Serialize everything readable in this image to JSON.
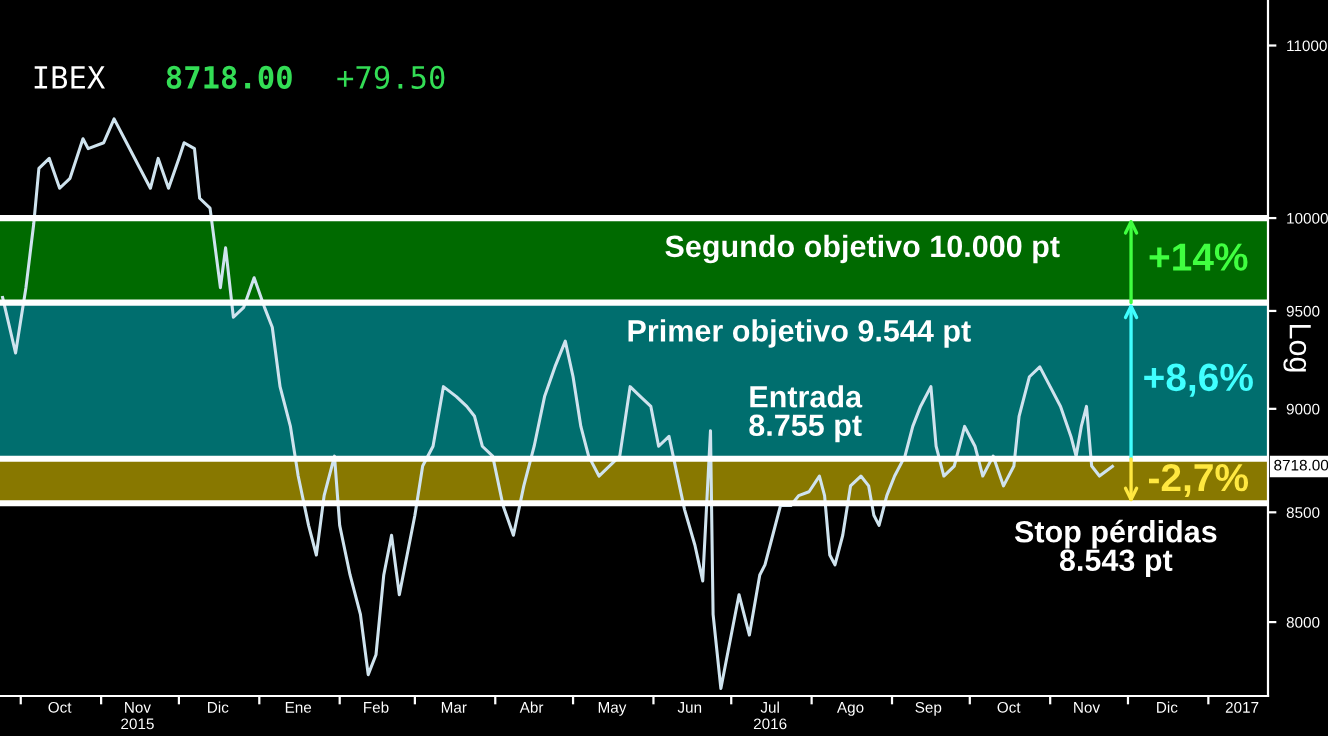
{
  "chart_data": {
    "type": "line",
    "title": "IBEX",
    "ylabel": "Log",
    "annotations": [
      "8718.00",
      "+79.50",
      {
        "text": "8718.00",
        "y": 8718
      }
    ],
    "x": [
      "2015-09-24",
      "2015-09-29",
      "2015-10-03",
      "2015-10-06",
      "2015-10-08",
      "2015-10-12",
      "2015-10-16",
      "2015-10-20",
      "2015-10-25",
      "2015-10-27",
      "2015-11-02",
      "2015-11-06",
      "2015-11-10",
      "2015-11-16",
      "2015-11-20",
      "2015-11-23",
      "2015-11-27",
      "2015-12-01",
      "2015-12-03",
      "2015-12-07",
      "2015-12-09",
      "2015-12-13",
      "2015-12-17",
      "2015-12-19",
      "2015-12-22",
      "2015-12-26",
      "2015-12-30",
      "2016-01-03",
      "2016-01-06",
      "2016-01-09",
      "2016-01-13",
      "2016-01-16",
      "2016-01-20",
      "2016-01-23",
      "2016-01-26",
      "2016-01-30",
      "2016-02-01",
      "2016-02-05",
      "2016-02-09",
      "2016-02-12",
      "2016-02-15",
      "2016-02-18",
      "2016-02-21",
      "2016-02-24",
      "2016-02-27",
      "2016-03-01",
      "2016-03-04",
      "2016-03-08",
      "2016-03-12",
      "2016-03-17",
      "2016-03-21",
      "2016-03-24",
      "2016-03-27",
      "2016-03-31",
      "2016-04-04",
      "2016-04-08",
      "2016-04-12",
      "2016-04-16",
      "2016-04-20",
      "2016-04-24",
      "2016-04-28",
      "2016-05-01",
      "2016-05-04",
      "2016-05-07",
      "2016-05-11",
      "2016-05-15",
      "2016-05-19",
      "2016-05-23",
      "2016-05-27",
      "2016-05-31",
      "2016-06-03",
      "2016-06-07",
      "2016-06-13",
      "2016-06-17",
      "2016-06-20",
      "2016-06-23",
      "2016-06-24",
      "2016-06-27",
      "2016-07-04",
      "2016-07-08",
      "2016-07-12",
      "2016-07-14",
      "2016-07-17",
      "2016-07-20",
      "2016-07-24",
      "2016-07-27",
      "2016-07-31",
      "2016-08-04",
      "2016-08-06",
      "2016-08-08",
      "2016-08-10",
      "2016-08-13",
      "2016-08-16",
      "2016-08-20",
      "2016-08-23",
      "2016-08-25",
      "2016-08-27",
      "2016-08-30",
      "2016-09-02",
      "2016-09-06",
      "2016-09-09",
      "2016-09-12",
      "2016-09-16",
      "2016-09-18",
      "2016-09-21",
      "2016-09-25",
      "2016-09-29",
      "2016-10-03",
      "2016-10-06",
      "2016-10-10",
      "2016-10-14",
      "2016-10-18",
      "2016-10-20",
      "2016-10-24",
      "2016-10-28",
      "2016-11-01",
      "2016-11-05",
      "2016-11-09",
      "2016-11-11",
      "2016-11-13",
      "2016-11-15",
      "2016-11-17",
      "2016-11-20",
      "2016-11-25"
    ],
    "series": [
      {
        "color": "#cfe3ee",
        "values": [
          9571,
          9282,
          9623,
          9967,
          10278,
          10335,
          10166,
          10222,
          10448,
          10391,
          10425,
          10563,
          10448,
          10278,
          10166,
          10335,
          10166,
          10335,
          10425,
          10391,
          10110,
          10055,
          9623,
          9837,
          9467,
          9519,
          9676,
          9519,
          9415,
          9111,
          8913,
          8672,
          8439,
          8302,
          8579,
          8768,
          8439,
          8211,
          8034,
          7771,
          7857,
          8211,
          8393,
          8122,
          8302,
          8486,
          8720,
          8816,
          9111,
          9061,
          9012,
          8963,
          8816,
          8768,
          8532,
          8393,
          8625,
          8816,
          9061,
          9211,
          9343,
          9161,
          8913,
          8768,
          8672,
          8720,
          8768,
          9111,
          9061,
          9012,
          8816,
          8864,
          8513,
          8347,
          8184,
          8892,
          8034,
          7712,
          8122,
          7943,
          8211,
          8257,
          8393,
          8532,
          8532,
          8579,
          8597,
          8672,
          8579,
          8302,
          8257,
          8393,
          8625,
          8672,
          8625,
          8486,
          8439,
          8579,
          8672,
          8768,
          8913,
          9012,
          9111,
          8816,
          8672,
          8720,
          8913,
          8816,
          8672,
          8768,
          8625,
          8720,
          8963,
          9161,
          9211,
          9111,
          9012,
          8864,
          8768,
          8913,
          9012,
          8720,
          8672,
          8718
        ]
      }
    ],
    "log": "y",
    "ylim": [
      7680,
      11280
    ],
    "yticks": [
      8000,
      8500,
      9000,
      9500,
      10000,
      11000
    ],
    "xlim": [
      "2015-09-23",
      "2017-01-24"
    ],
    "xticks": [
      {
        "value": "2015-10-01",
        "label": null
      },
      {
        "value": "2015-11-01",
        "label": null
      },
      {
        "value": "2015-12-01",
        "label": null
      },
      {
        "value": "2016-01-01",
        "label": null
      },
      {
        "value": "2016-02-01",
        "label": null
      },
      {
        "value": "2016-03-01",
        "label": null
      },
      {
        "value": "2016-04-01",
        "label": null
      },
      {
        "value": "2016-05-01",
        "label": null
      },
      {
        "value": "2016-06-01",
        "label": null
      },
      {
        "value": "2016-07-01",
        "label": null
      },
      {
        "value": "2016-08-01",
        "label": null
      },
      {
        "value": "2016-09-01",
        "label": null
      },
      {
        "value": "2016-10-01",
        "label": null
      },
      {
        "value": "2016-11-01",
        "label": null
      },
      {
        "value": "2016-12-01",
        "label": null
      },
      {
        "value": "2017-01-01",
        "label": null
      },
      {
        "value": "2015-10-16",
        "label": "Oct"
      },
      {
        "value": "2015-11-15",
        "label": "Nov\n2015"
      },
      {
        "value": "2015-12-16",
        "label": "Dic"
      },
      {
        "value": "2016-01-16",
        "label": "Ene"
      },
      {
        "value": "2016-02-15",
        "label": "Feb"
      },
      {
        "value": "2016-03-16",
        "label": "Mar"
      },
      {
        "value": "2016-04-15",
        "label": "Abr"
      },
      {
        "value": "2016-05-16",
        "label": "May"
      },
      {
        "value": "2016-06-15",
        "label": "Jun"
      },
      {
        "value": "2016-07-16",
        "label": "Jul\n2016"
      },
      {
        "value": "2016-08-16",
        "label": "Ago"
      },
      {
        "value": "2016-09-15",
        "label": "Sep"
      },
      {
        "value": "2016-10-16",
        "label": "Oct"
      },
      {
        "value": "2016-11-15",
        "label": "Nov"
      },
      {
        "value": "2016-12-16",
        "label": "Dic"
      },
      {
        "value": "2017-01-14",
        "label": "2017"
      }
    ],
    "ref_lines": [
      {
        "axis": "y",
        "value": 10000,
        "label": "Segundo objetivo 10.000 pt",
        "color": "#ffffff"
      },
      {
        "axis": "y",
        "value": 9544,
        "label": "Primer objetivo 9.544 pt",
        "color": "#ffffff"
      },
      {
        "axis": "y",
        "value": 8755,
        "label": "Entrada\n8.755 pt",
        "color": "#ffffff"
      },
      {
        "axis": "y",
        "value": 8543,
        "label": "Stop pérdidas\n8.543 pt",
        "color": "#ffffff"
      }
    ],
    "bands": [
      {
        "axis": "y",
        "from": 9544,
        "to": 10000,
        "label": "+14%",
        "color": "#006a00"
      },
      {
        "axis": "y",
        "from": 8755,
        "to": 9544,
        "label": "+8,6%",
        "color": "#006e6e"
      },
      {
        "axis": "y",
        "from": 8755,
        "to": 8543,
        "label": "-2,7%",
        "color": "#887800"
      }
    ],
    "grid": false,
    "legend": false
  }
}
